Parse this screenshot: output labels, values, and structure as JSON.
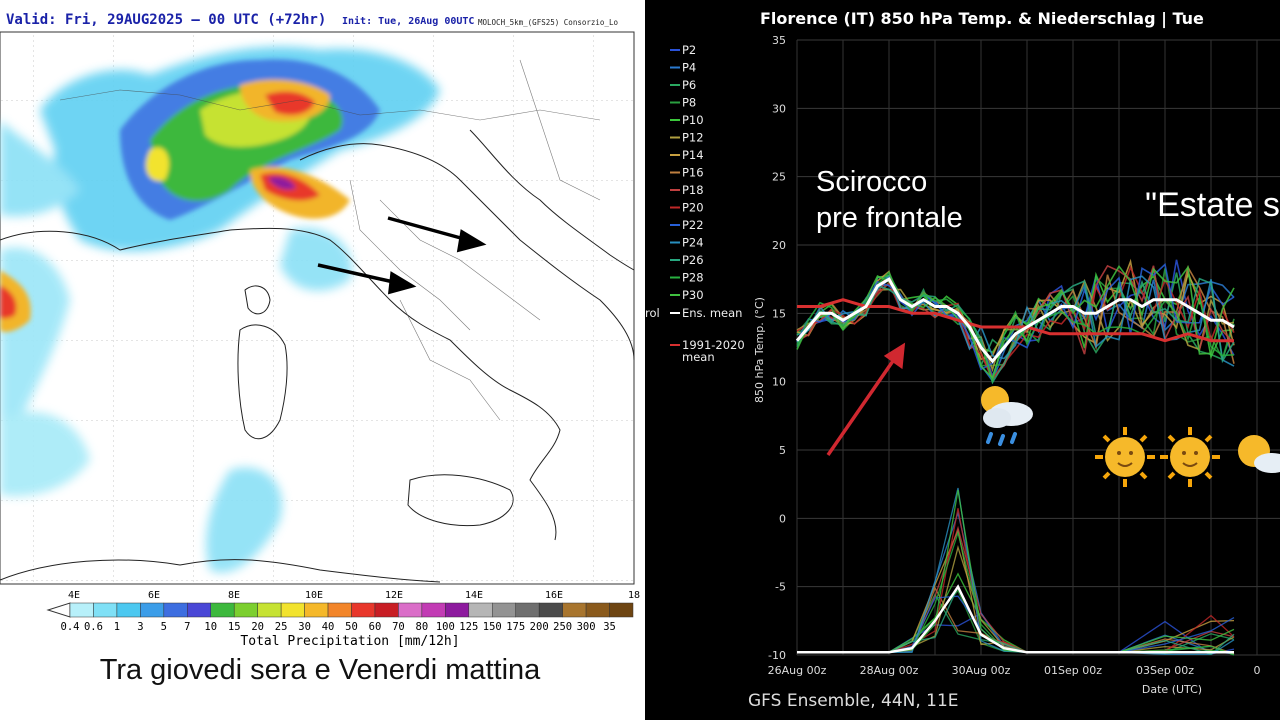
{
  "left_map": {
    "valid": "Valid: Fri, 29AUG2025 – 00 UTC (+72hr)",
    "init": "Init: Tue, 26Aug 00UTC",
    "model": "MOLOCH_5km_(GFS25) Consorzio_Lo",
    "lon_ticks": [
      "4E",
      "6E",
      "8E",
      "10E",
      "12E",
      "14E",
      "16E",
      "18"
    ],
    "colorbar_title": "Total Precipitation [mm/12h]",
    "colorbar_labels": [
      "0.4",
      "0.6",
      "1",
      "3",
      "5",
      "7",
      "10",
      "15",
      "20",
      "25",
      "30",
      "40",
      "50",
      "60",
      "70",
      "80",
      "100",
      "125",
      "150",
      "175",
      "200",
      "250",
      "300",
      "35"
    ],
    "colorbar_colors": [
      "#b7f0fa",
      "#7fe0f6",
      "#4cc8f0",
      "#3b9de8",
      "#3d6ee0",
      "#4a47d6",
      "#3db83d",
      "#7ccf2f",
      "#c6e233",
      "#f2e32e",
      "#f5b82a",
      "#f2852a",
      "#e8372b",
      "#c81d24",
      "#da6ec8",
      "#c23bb4",
      "#8d1a9e",
      "#b5b5b5",
      "#939393",
      "#6f6f6f",
      "#4b4b4b",
      "#a8752e",
      "#8a5a1c",
      "#6e4512"
    ],
    "caption": "Tra giovedi sera e Venerdi mattina"
  },
  "chart_data": {
    "type": "line",
    "title": "Florence  (IT)  850 hPa Temp. & Niederschlag | Tue",
    "xlabel": "Date (UTC)",
    "ylabel": "850 hPa Temp. (°C)",
    "ylim": [
      -10,
      35
    ],
    "yticks": [
      "35",
      "30",
      "25",
      "20",
      "15",
      "10",
      "5",
      "0",
      "-5",
      "-10"
    ],
    "xticks": [
      "26Aug 00z",
      "28Aug 00z",
      "30Aug 00z",
      "01Sep 00z",
      "03Sep 00z",
      "0"
    ],
    "footer": "GFS Ensemble, 44N, 11E",
    "legend": [
      "P2",
      "P4",
      "P6",
      "P8",
      "P10",
      "P12",
      "P14",
      "P16",
      "P18",
      "P20",
      "P22",
      "P24",
      "P26",
      "P28",
      "P30",
      "Ens. mean",
      "1991-2020 mean"
    ],
    "legend_extra": "rol",
    "legend_colors": [
      "#2a52d8",
      "#2a7ad0",
      "#2aa860",
      "#2aa040",
      "#3cc83c",
      "#b0a040",
      "#c8a040",
      "#c08040",
      "#c04040",
      "#c02828",
      "#2860d8",
      "#2890c0",
      "#28a880",
      "#28b040",
      "#40c040",
      "#ffffff",
      "#d83030"
    ],
    "annotations": [
      "Scirocco",
      "pre frontale",
      "\"Estate s"
    ],
    "series": [
      {
        "name": "Ens. mean",
        "color": "#ffffff",
        "x": [
          0,
          0.25,
          0.5,
          0.75,
          1,
          1.25,
          1.5,
          1.75,
          2,
          2.25,
          2.5,
          2.75,
          3,
          3.25,
          3.5,
          3.75,
          4,
          4.25,
          4.5,
          4.75,
          5,
          5.25,
          5.5,
          5.75,
          6,
          6.25,
          6.5,
          6.75,
          7,
          7.25,
          7.5,
          7.75,
          8,
          8.25,
          8.5,
          8.75,
          9,
          9.25,
          9.5
        ],
        "y": [
          13,
          14,
          15,
          15,
          14.5,
          15,
          15.5,
          17,
          17.5,
          16,
          15.5,
          16,
          15.5,
          15.5,
          15,
          14,
          12.5,
          11.5,
          12.5,
          13.5,
          14,
          14.5,
          15,
          15.5,
          15.5,
          15,
          15,
          15.5,
          16,
          16,
          15.5,
          16,
          16,
          16,
          15.5,
          15,
          14.5,
          14.5,
          14
        ]
      },
      {
        "name": "1991-2020 mean",
        "color": "#d83030",
        "x": [
          0,
          0.5,
          1,
          1.5,
          2,
          2.5,
          3,
          3.5,
          4,
          4.5,
          5,
          5.5,
          6,
          6.5,
          7,
          7.5,
          8,
          8.5,
          9,
          9.5
        ],
        "y": [
          15.5,
          15.5,
          16,
          15.5,
          15.5,
          15,
          15,
          14.5,
          14,
          14,
          14,
          13.5,
          13.5,
          13.5,
          13.5,
          13.5,
          13,
          13.5,
          13,
          13
        ]
      }
    ],
    "precip_mean": {
      "name": "Ens. mean",
      "x": [
        0,
        1,
        2,
        2.5,
        3,
        3.5,
        4,
        4.5,
        5,
        6,
        7,
        8,
        9,
        9.5
      ],
      "y": [
        -9.8,
        -9.8,
        -9.8,
        -9.5,
        -7.5,
        -5,
        -8.5,
        -9.5,
        -9.8,
        -9.8,
        -9.8,
        -9.8,
        -9.8,
        -9.8
      ]
    }
  }
}
